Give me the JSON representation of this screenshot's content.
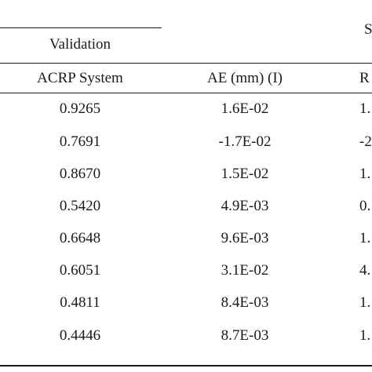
{
  "group_headers": {
    "validation": "Validation",
    "second_group_fragment": "S"
  },
  "columns": [
    "ACRP System",
    "AE (mm) (I)",
    "R"
  ],
  "rows": [
    [
      "0.9265",
      "1.6E-02",
      "1."
    ],
    [
      "0.7691",
      "-1.7E-02",
      "-2"
    ],
    [
      "0.8670",
      "1.5E-02",
      "1."
    ],
    [
      "0.5420",
      "4.9E-03",
      "0."
    ],
    [
      "0.6648",
      "9.6E-03",
      "1."
    ],
    [
      "0.6051",
      "3.1E-02",
      "4."
    ],
    [
      "0.4811",
      "8.4E-03",
      "1."
    ],
    [
      "0.4446",
      "8.7E-03",
      "1."
    ]
  ]
}
